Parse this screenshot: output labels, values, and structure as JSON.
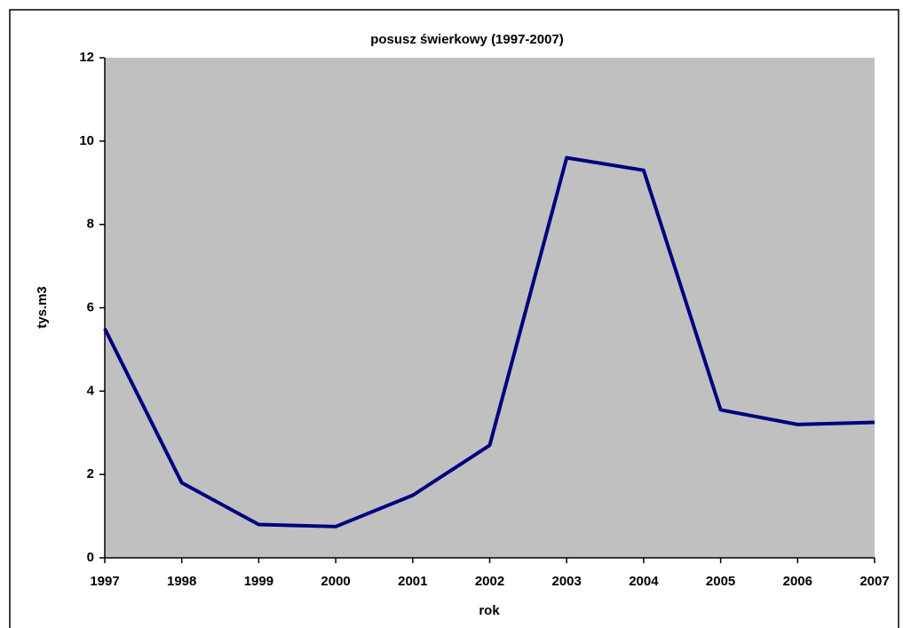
{
  "chart_data": {
    "type": "line",
    "title": "posusz świerkowy (1997-2007)",
    "xlabel": "rok",
    "ylabel": "tys.m3",
    "x": [
      1997,
      1998,
      1999,
      2000,
      2001,
      2002,
      2003,
      2004,
      2005,
      2006,
      2007
    ],
    "values": [
      5.5,
      1.8,
      0.8,
      0.75,
      1.5,
      2.7,
      9.6,
      9.3,
      3.55,
      3.2,
      3.25
    ],
    "color": "#000080",
    "xlim": [
      1997,
      2007
    ],
    "xticks": [
      1997,
      1998,
      1999,
      2000,
      2001,
      2002,
      2003,
      2004,
      2005,
      2006,
      2007
    ],
    "ylim": [
      0,
      12
    ],
    "yticks": [
      0,
      2,
      4,
      6,
      8,
      10,
      12
    ],
    "plot_background": "#c0c0c0"
  }
}
